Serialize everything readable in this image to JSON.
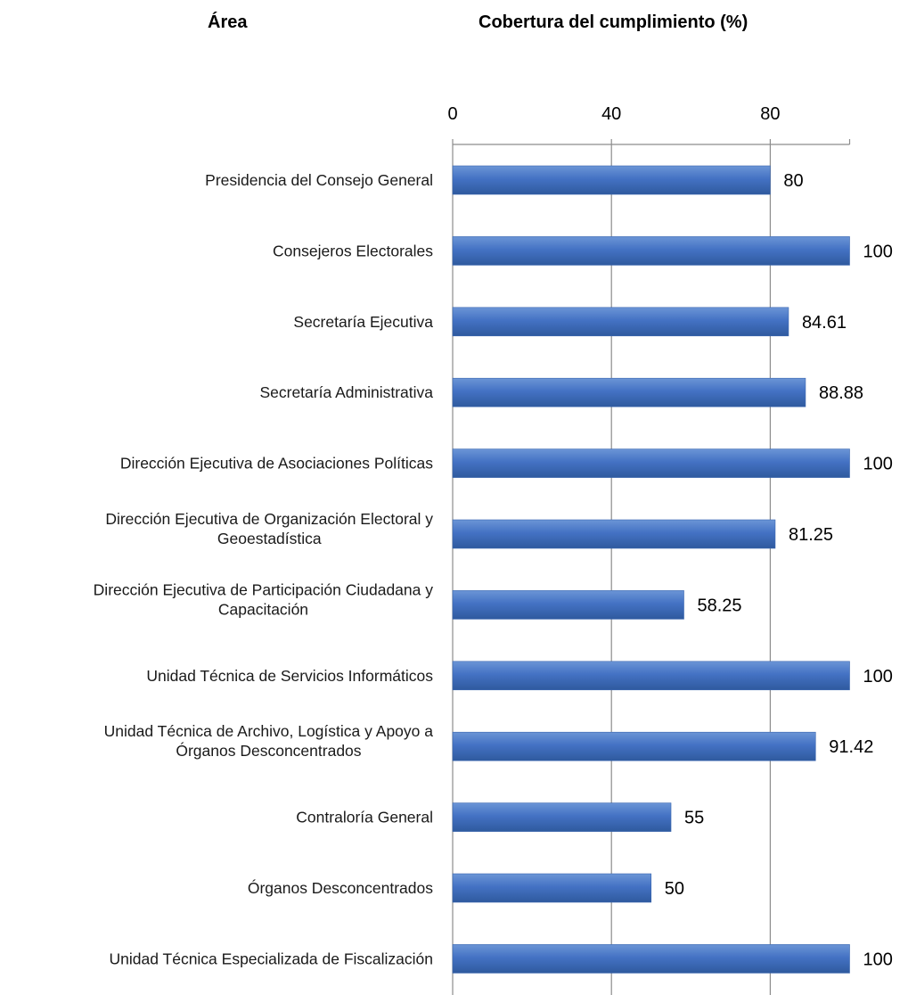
{
  "headers": {
    "area": "Área",
    "coverage": "Cobertura del cumplimiento (%)"
  },
  "chart_data": {
    "type": "bar",
    "orientation": "horizontal",
    "title": "",
    "xlabel": "Cobertura del cumplimiento (%)",
    "ylabel": "Área",
    "xlim": [
      0,
      100
    ],
    "xticks": [
      0,
      40,
      80
    ],
    "grid": true,
    "bar_color": "#4472C4",
    "categories": [
      [
        "Presidencia del Consejo General"
      ],
      [
        "Consejeros Electorales"
      ],
      [
        "Secretaría Ejecutiva"
      ],
      [
        "Secretaría Administrativa"
      ],
      [
        "Dirección Ejecutiva de Asociaciones Políticas"
      ],
      [
        "Dirección Ejecutiva de Organización Electoral y",
        "Geoestadística"
      ],
      [
        "Dirección Ejecutiva de Participación Ciudadana y",
        "Capacitación"
      ],
      [
        "Unidad Técnica de Servicios Informáticos"
      ],
      [
        "Unidad Técnica de Archivo, Logística y Apoyo a",
        "Órganos Desconcentrados"
      ],
      [
        "Contraloría General"
      ],
      [
        "Órganos Desconcentrados"
      ],
      [
        "Unidad Técnica Especializada de Fiscalización"
      ]
    ],
    "values": [
      80,
      100,
      84.61,
      88.88,
      100,
      81.25,
      58.25,
      100,
      91.42,
      55,
      50,
      100
    ],
    "data_labels": [
      "80",
      "100",
      "84.61",
      "88.88",
      "100",
      "81.25",
      "58.25",
      "100",
      "91.42",
      "55",
      "50",
      "100"
    ]
  }
}
